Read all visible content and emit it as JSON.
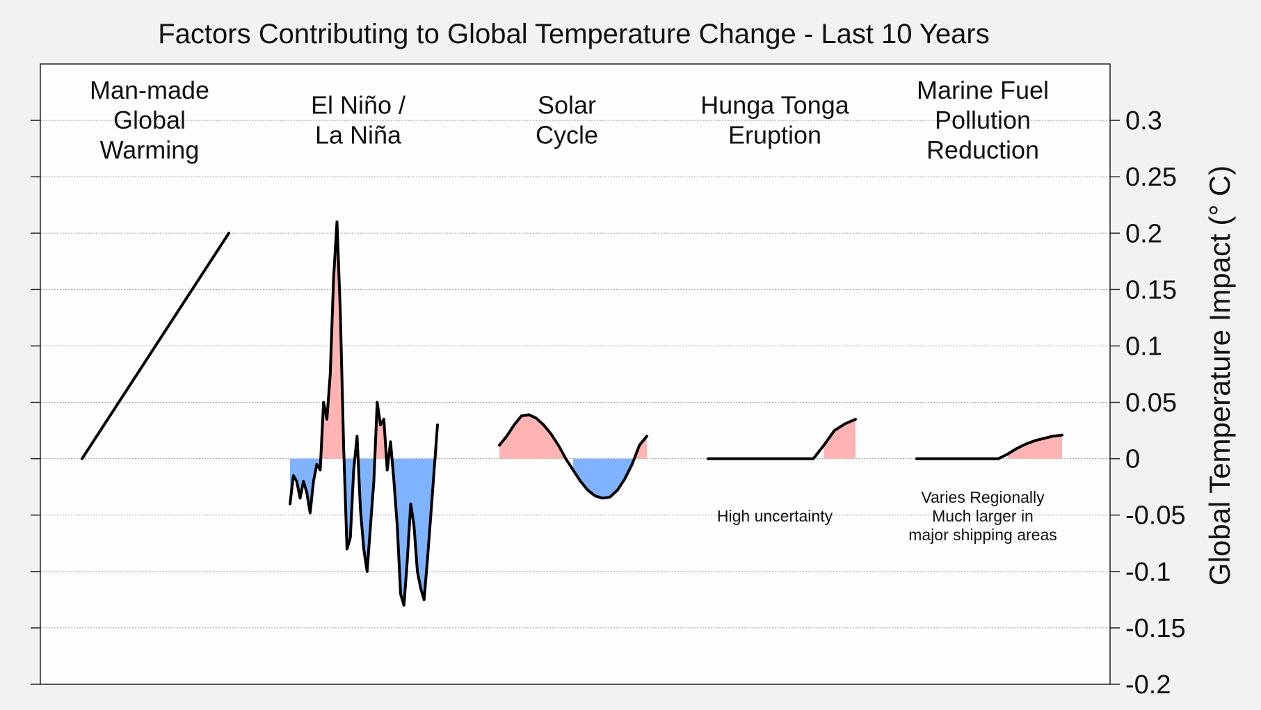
{
  "chart_data": {
    "type": "area",
    "title": "Factors Contributing to Global Temperature Change - Last 10 Years",
    "ylabel": "Global Temperature Impact (° C)",
    "ylim": [
      -0.2,
      0.35
    ],
    "yticks": [
      0.3,
      0.25,
      0.2,
      0.15,
      0.1,
      0.05,
      0,
      -0.05,
      -0.1,
      -0.15,
      -0.2
    ],
    "ytick_labels": [
      "0.3",
      "0.25",
      "0.2",
      "0.15",
      "0.1",
      "0.05",
      "0",
      "-0.05",
      "-0.1",
      "-0.15",
      "-0.2"
    ],
    "grid": true,
    "axis_side": "right",
    "colors": {
      "positive": "#ffb3b3",
      "negative": "#80b3ff",
      "line": "#000000"
    },
    "series": [
      {
        "name_lines": [
          "Man-made",
          "Global",
          "Warming"
        ],
        "notes": [],
        "values": [
          0.0,
          0.2
        ]
      },
      {
        "name_lines": [
          "El Niño /",
          "La Niña"
        ],
        "notes": [],
        "values": [
          -0.04,
          -0.015,
          -0.02,
          -0.035,
          -0.02,
          -0.03,
          -0.048,
          -0.02,
          -0.005,
          -0.01,
          0.05,
          0.035,
          0.075,
          0.16,
          0.21,
          0.13,
          0.01,
          -0.08,
          -0.07,
          -0.01,
          0.02,
          -0.045,
          -0.08,
          -0.1,
          -0.06,
          -0.02,
          0.05,
          0.03,
          0.035,
          -0.01,
          0.015,
          -0.02,
          -0.06,
          -0.12,
          -0.13,
          -0.09,
          -0.04,
          -0.06,
          -0.1,
          -0.115,
          -0.125,
          -0.09,
          -0.05,
          -0.01,
          0.03
        ]
      },
      {
        "name_lines": [
          "Solar",
          "Cycle"
        ],
        "notes": [],
        "values": [
          0.012,
          0.02,
          0.03,
          0.038,
          0.039,
          0.036,
          0.03,
          0.022,
          0.012,
          0.0,
          -0.01,
          -0.02,
          -0.028,
          -0.033,
          -0.035,
          -0.034,
          -0.028,
          -0.018,
          -0.005,
          0.012,
          0.02
        ]
      },
      {
        "name_lines": [
          "Hunga Tonga",
          "Eruption"
        ],
        "notes": [
          "High uncertainty"
        ],
        "values": [
          0.0,
          0.0,
          0.0,
          0.0,
          0.0,
          0.0,
          0.0,
          0.0,
          0.0,
          0.0,
          0.0,
          0.012,
          0.025,
          0.031,
          0.035
        ]
      },
      {
        "name_lines": [
          "Marine Fuel",
          "Pollution",
          "Reduction"
        ],
        "notes": [
          "Varies Regionally",
          "Much larger in",
          "major shipping areas"
        ],
        "values": [
          0.0,
          0.0,
          0.0,
          0.0,
          0.0,
          0.0,
          0.0,
          0.0,
          0.0,
          0.0,
          0.004,
          0.009,
          0.013,
          0.016,
          0.018,
          0.02,
          0.021
        ]
      }
    ]
  }
}
